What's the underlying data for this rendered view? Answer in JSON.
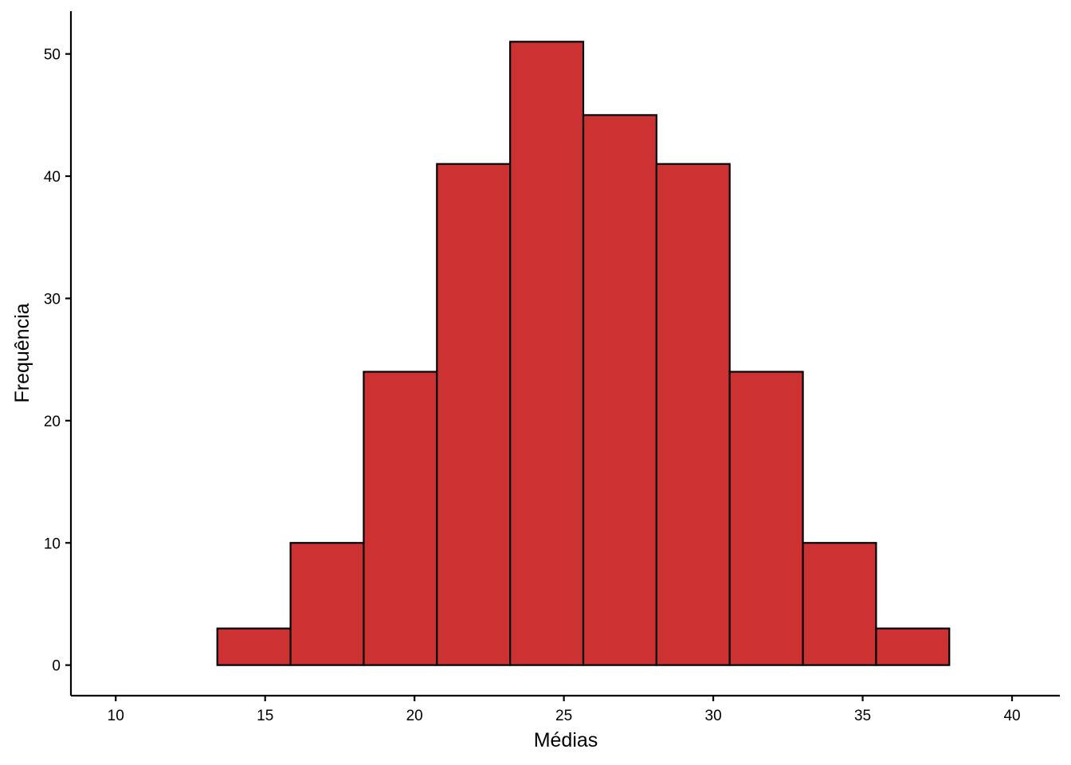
{
  "chart_data": {
    "type": "bar",
    "subtype": "histogram",
    "title": "",
    "xlabel": "Médias",
    "ylabel": "Frequência",
    "xlim": [
      8.5,
      41.6
    ],
    "ylim": [
      -2.5,
      53.5
    ],
    "xticks": [
      10,
      15,
      20,
      25,
      30,
      35,
      40
    ],
    "yticks": [
      0,
      10,
      20,
      30,
      40,
      50
    ],
    "bins": [
      {
        "start": 13.4,
        "end": 15.85,
        "count": 3
      },
      {
        "start": 15.85,
        "end": 18.3,
        "count": 10
      },
      {
        "start": 18.3,
        "end": 20.75,
        "count": 24
      },
      {
        "start": 20.75,
        "end": 23.2,
        "count": 41
      },
      {
        "start": 23.2,
        "end": 25.65,
        "count": 51
      },
      {
        "start": 25.65,
        "end": 28.1,
        "count": 45
      },
      {
        "start": 28.1,
        "end": 30.55,
        "count": 41
      },
      {
        "start": 30.55,
        "end": 33.0,
        "count": 24
      },
      {
        "start": 33.0,
        "end": 35.45,
        "count": 10
      },
      {
        "start": 35.45,
        "end": 37.9,
        "count": 3
      }
    ],
    "bar_color": "#CD3233",
    "edge_color": "#000000",
    "grid": false,
    "legend": "none"
  }
}
